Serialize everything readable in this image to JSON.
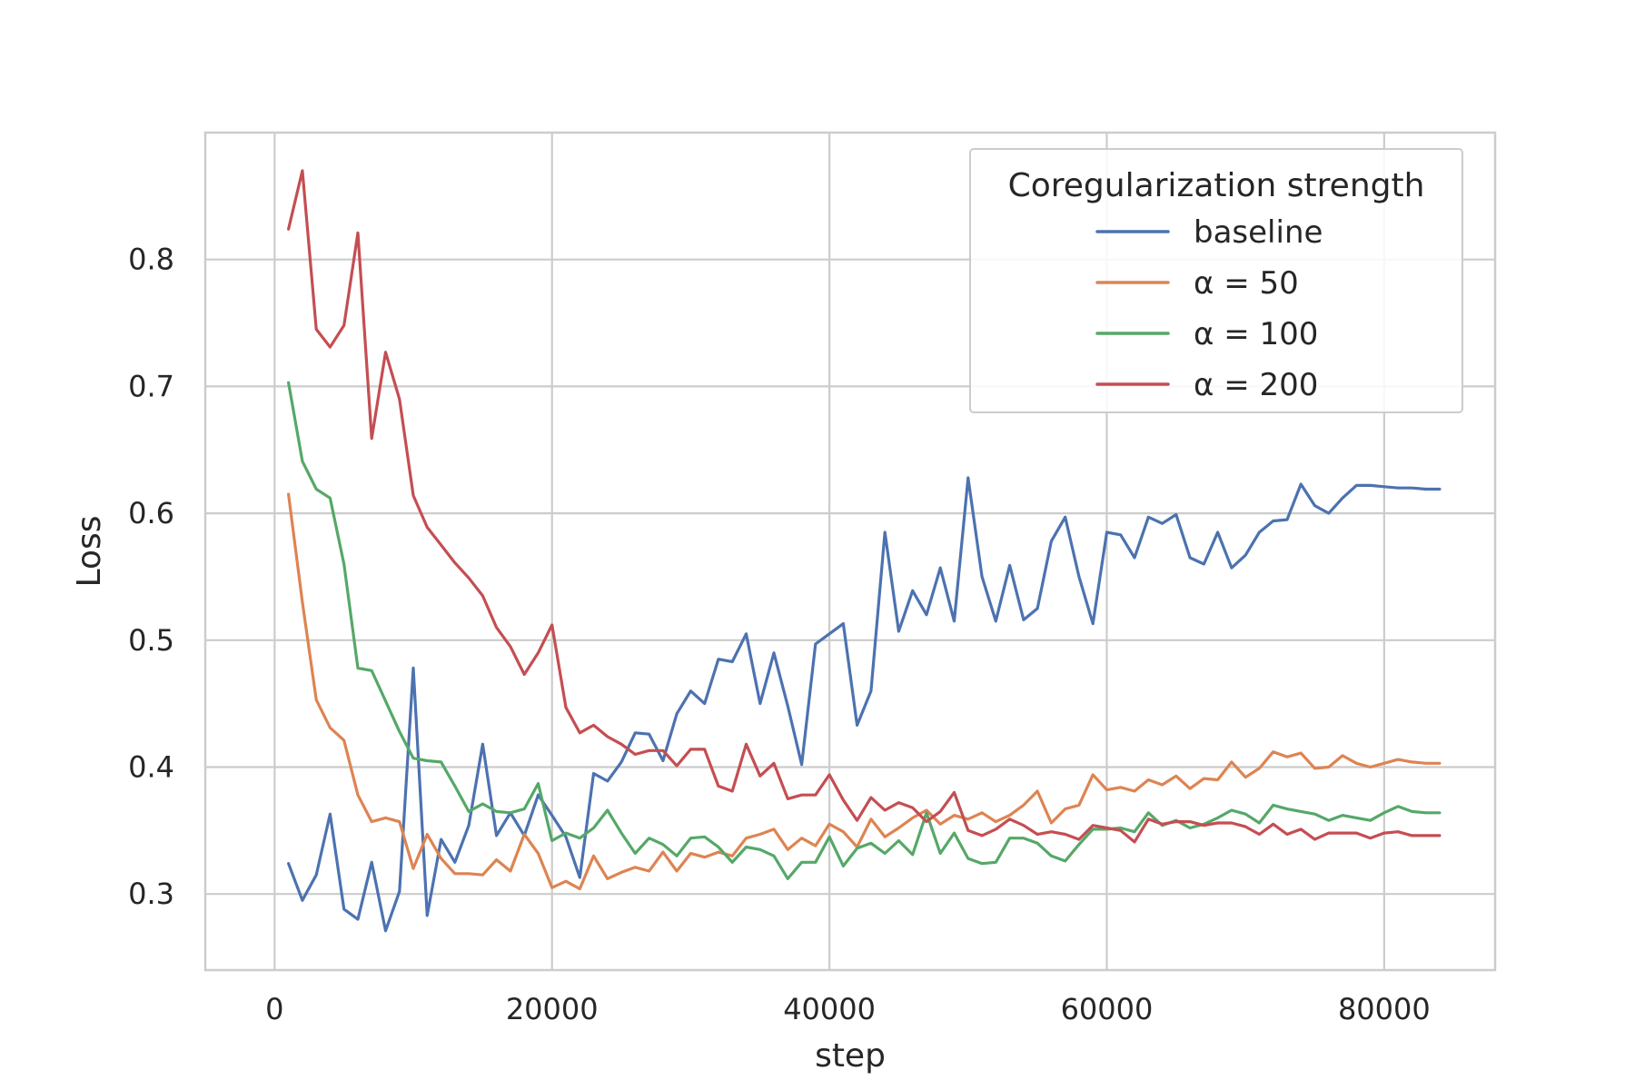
{
  "chart_data": {
    "type": "line",
    "title": "",
    "xlabel": "step",
    "ylabel": "Loss",
    "xlim": [
      -5000,
      88000
    ],
    "ylim": [
      0.24,
      0.9
    ],
    "x_ticks": [
      0,
      20000,
      40000,
      60000,
      80000
    ],
    "y_ticks": [
      0.3,
      0.4,
      0.5,
      0.6,
      0.7,
      0.8
    ],
    "x_tick_labels": [
      "0",
      "20000",
      "40000",
      "60000",
      "80000"
    ],
    "y_tick_labels": [
      "0.3",
      "0.4",
      "0.5",
      "0.6",
      "0.7",
      "0.8"
    ],
    "grid": true,
    "legend": {
      "title": "Coregularization strength",
      "placement": "top-right"
    },
    "x": [
      1000,
      2000,
      3000,
      4000,
      5000,
      6000,
      7000,
      8000,
      9000,
      10000,
      11000,
      12000,
      13000,
      14000,
      15000,
      16000,
      17000,
      18000,
      19000,
      20000,
      21000,
      22000,
      23000,
      24000,
      25000,
      26000,
      27000,
      28000,
      29000,
      30000,
      31000,
      32000,
      33000,
      34000,
      35000,
      36000,
      37000,
      38000,
      39000,
      40000,
      41000,
      42000,
      43000,
      44000,
      45000,
      46000,
      47000,
      48000,
      49000,
      50000,
      51000,
      52000,
      53000,
      54000,
      55000,
      56000,
      57000,
      58000,
      59000,
      60000,
      61000,
      62000,
      63000,
      64000,
      65000,
      66000,
      67000,
      68000,
      69000,
      70000,
      71000,
      72000,
      73000,
      74000,
      75000,
      76000,
      77000,
      78000,
      79000,
      80000,
      81000,
      82000,
      83000,
      84000
    ],
    "series": [
      {
        "name": "baseline",
        "color": "#4c72b0",
        "values": [
          0.324,
          0.295,
          0.315,
          0.363,
          0.288,
          0.28,
          0.325,
          0.271,
          0.302,
          0.478,
          0.283,
          0.343,
          0.325,
          0.354,
          0.418,
          0.346,
          0.364,
          0.346,
          0.378,
          0.362,
          0.345,
          0.313,
          0.395,
          0.389,
          0.404,
          0.427,
          0.426,
          0.405,
          0.442,
          0.46,
          0.45,
          0.485,
          0.483,
          0.505,
          0.45,
          0.49,
          0.448,
          0.402,
          0.497,
          0.505,
          0.513,
          0.433,
          0.46,
          0.585,
          0.507,
          0.539,
          0.52,
          0.557,
          0.515,
          0.628,
          0.55,
          0.515,
          0.559,
          0.516,
          0.525,
          0.578,
          0.597,
          0.55,
          0.513,
          0.585,
          0.583,
          0.565,
          0.597,
          0.592,
          0.599,
          0.565,
          0.56,
          0.585,
          0.557,
          0.567,
          0.585,
          0.594,
          0.595,
          0.623,
          0.606,
          0.6,
          0.612,
          0.622,
          0.622,
          0.621,
          0.62,
          0.62,
          0.619,
          0.619
        ]
      },
      {
        "name": "α = 50",
        "color": "#dd8452",
        "values": [
          0.615,
          0.53,
          0.453,
          0.431,
          0.421,
          0.378,
          0.357,
          0.36,
          0.357,
          0.32,
          0.347,
          0.328,
          0.316,
          0.316,
          0.315,
          0.327,
          0.318,
          0.347,
          0.332,
          0.305,
          0.31,
          0.304,
          0.33,
          0.312,
          0.317,
          0.321,
          0.318,
          0.333,
          0.318,
          0.332,
          0.329,
          0.333,
          0.33,
          0.344,
          0.347,
          0.351,
          0.335,
          0.344,
          0.338,
          0.355,
          0.349,
          0.337,
          0.359,
          0.345,
          0.352,
          0.36,
          0.366,
          0.355,
          0.362,
          0.359,
          0.364,
          0.357,
          0.362,
          0.37,
          0.381,
          0.356,
          0.367,
          0.37,
          0.394,
          0.382,
          0.384,
          0.381,
          0.39,
          0.386,
          0.393,
          0.383,
          0.391,
          0.39,
          0.404,
          0.392,
          0.399,
          0.412,
          0.408,
          0.411,
          0.399,
          0.4,
          0.409,
          0.403,
          0.4,
          0.403,
          0.406,
          0.404,
          0.403,
          0.403
        ]
      },
      {
        "name": "α = 100",
        "color": "#55a868",
        "values": [
          0.703,
          0.641,
          0.619,
          0.612,
          0.56,
          0.478,
          0.476,
          0.452,
          0.428,
          0.407,
          0.405,
          0.404,
          0.385,
          0.365,
          0.371,
          0.365,
          0.364,
          0.367,
          0.387,
          0.342,
          0.348,
          0.344,
          0.352,
          0.366,
          0.348,
          0.332,
          0.344,
          0.339,
          0.33,
          0.344,
          0.345,
          0.337,
          0.325,
          0.337,
          0.335,
          0.33,
          0.312,
          0.325,
          0.325,
          0.345,
          0.322,
          0.336,
          0.34,
          0.332,
          0.342,
          0.331,
          0.364,
          0.332,
          0.348,
          0.328,
          0.324,
          0.325,
          0.344,
          0.344,
          0.34,
          0.33,
          0.326,
          0.339,
          0.351,
          0.351,
          0.352,
          0.349,
          0.364,
          0.354,
          0.358,
          0.352,
          0.355,
          0.36,
          0.366,
          0.363,
          0.356,
          0.37,
          0.367,
          0.365,
          0.363,
          0.358,
          0.362,
          0.36,
          0.358,
          0.364,
          0.369,
          0.365,
          0.364,
          0.364
        ]
      },
      {
        "name": "α = 200",
        "color": "#c44e52",
        "values": [
          0.824,
          0.87,
          0.745,
          0.731,
          0.748,
          0.821,
          0.659,
          0.727,
          0.69,
          0.614,
          0.589,
          0.575,
          0.561,
          0.549,
          0.535,
          0.51,
          0.495,
          0.473,
          0.49,
          0.512,
          0.447,
          0.427,
          0.433,
          0.424,
          0.418,
          0.41,
          0.413,
          0.413,
          0.401,
          0.414,
          0.414,
          0.385,
          0.381,
          0.418,
          0.393,
          0.403,
          0.375,
          0.378,
          0.378,
          0.394,
          0.374,
          0.358,
          0.376,
          0.366,
          0.372,
          0.368,
          0.357,
          0.365,
          0.38,
          0.35,
          0.346,
          0.351,
          0.359,
          0.354,
          0.347,
          0.349,
          0.347,
          0.343,
          0.354,
          0.352,
          0.35,
          0.341,
          0.359,
          0.355,
          0.357,
          0.357,
          0.354,
          0.356,
          0.356,
          0.353,
          0.347,
          0.355,
          0.347,
          0.351,
          0.343,
          0.348,
          0.348,
          0.348,
          0.344,
          0.348,
          0.349,
          0.346,
          0.346,
          0.346
        ]
      }
    ]
  },
  "legend_entries": [
    "baseline",
    "α = 50",
    "α = 100",
    "α = 200"
  ]
}
